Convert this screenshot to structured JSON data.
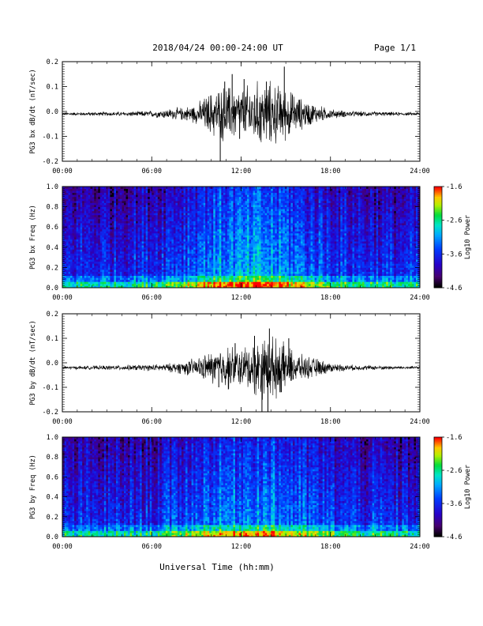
{
  "header": {
    "title": "2018/04/24  00:00-24:00 UT",
    "page": "Page 1/1"
  },
  "footer": {
    "xlabel": "Universal Time (hh:mm)"
  },
  "chart_data": [
    {
      "type": "line",
      "ylabel": "PG3 bx dB/dt (nT/sec)",
      "xlim": [
        0,
        24
      ],
      "ylim": [
        -0.2,
        0.2
      ],
      "x_ticks": [
        "00:00",
        "06:00",
        "12:00",
        "18:00",
        "24:00"
      ],
      "y_ticks": [
        "0.2",
        "0.1",
        "0.0",
        "-0.1",
        "-0.2"
      ],
      "baseline": -0.01,
      "envelope_hours": [
        0,
        1,
        2,
        3,
        4,
        5,
        6,
        7,
        8,
        9,
        10,
        11,
        12,
        13,
        14,
        15,
        16,
        17,
        18,
        19,
        20,
        21,
        22,
        23,
        24
      ],
      "envelope_amplitude": [
        0.005,
        0.005,
        0.006,
        0.006,
        0.007,
        0.008,
        0.01,
        0.015,
        0.02,
        0.03,
        0.07,
        0.09,
        0.08,
        0.1,
        0.1,
        0.08,
        0.05,
        0.03,
        0.015,
        0.01,
        0.008,
        0.007,
        0.006,
        0.005,
        0.005
      ],
      "spikes": [
        {
          "x": 10.6,
          "y": -0.21
        },
        {
          "x": 11.4,
          "y": 0.15
        },
        {
          "x": 10.9,
          "y": 0.12
        },
        {
          "x": 14.9,
          "y": 0.18
        },
        {
          "x": 13.7,
          "y": 0.12
        },
        {
          "x": 12.2,
          "y": 0.13
        },
        {
          "x": 15.2,
          "y": -0.09
        },
        {
          "x": 11.9,
          "y": -0.11
        }
      ]
    },
    {
      "type": "heatmap",
      "ylabel": "PG3 bx Freq (Hz)",
      "xlim": [
        0,
        24
      ],
      "ylim": [
        0,
        1.0
      ],
      "x_ticks": [
        "00:00",
        "06:00",
        "12:00",
        "18:00",
        "24:00"
      ],
      "y_ticks": [
        "1.0",
        "0.8",
        "0.6",
        "0.4",
        "0.2",
        "0.0"
      ],
      "colorbar_label": "Log10 Power",
      "colorbar_ticks": [
        "-1.6",
        "-2.6",
        "-3.6",
        "-4.6"
      ],
      "zlim": [
        -4.6,
        -1.6
      ],
      "activity_hours": [
        0,
        2,
        4,
        6,
        8,
        9,
        10,
        11,
        12,
        13,
        14,
        15,
        16,
        17,
        18,
        20,
        22,
        24
      ],
      "activity_level": [
        0.12,
        0.14,
        0.16,
        0.2,
        0.32,
        0.42,
        0.52,
        0.55,
        0.52,
        0.58,
        0.56,
        0.5,
        0.42,
        0.34,
        0.28,
        0.2,
        0.16,
        0.14
      ]
    },
    {
      "type": "line",
      "ylabel": "PG3 by dB/dt (nT/sec)",
      "xlim": [
        0,
        24
      ],
      "ylim": [
        -0.2,
        0.2
      ],
      "x_ticks": [
        "00:00",
        "06:00",
        "12:00",
        "18:00",
        "24:00"
      ],
      "y_ticks": [
        "0.2",
        "0.1",
        "0.0",
        "-0.1",
        "-0.2"
      ],
      "baseline": -0.02,
      "envelope_hours": [
        0,
        1,
        2,
        3,
        4,
        5,
        6,
        7,
        8,
        9,
        10,
        11,
        12,
        13,
        14,
        15,
        16,
        17,
        18,
        19,
        20,
        21,
        22,
        23,
        24
      ],
      "envelope_amplitude": [
        0.005,
        0.005,
        0.006,
        0.007,
        0.008,
        0.009,
        0.01,
        0.012,
        0.02,
        0.03,
        0.05,
        0.07,
        0.06,
        0.09,
        0.1,
        0.07,
        0.04,
        0.03,
        0.015,
        0.01,
        0.008,
        0.007,
        0.006,
        0.005,
        0.005
      ],
      "spikes": [
        {
          "x": 13.4,
          "y": -0.22
        },
        {
          "x": 13.8,
          "y": -0.22
        },
        {
          "x": 13.9,
          "y": 0.14
        },
        {
          "x": 12.9,
          "y": 0.11
        },
        {
          "x": 11.6,
          "y": 0.08
        },
        {
          "x": 10.5,
          "y": -0.1
        },
        {
          "x": 14.7,
          "y": -0.12
        },
        {
          "x": 15.2,
          "y": 0.1
        }
      ]
    },
    {
      "type": "heatmap",
      "ylabel": "PG3 by Freq (Hz)",
      "xlim": [
        0,
        24
      ],
      "ylim": [
        0,
        1.0
      ],
      "x_ticks": [
        "00:00",
        "06:00",
        "12:00",
        "18:00",
        "24:00"
      ],
      "y_ticks": [
        "1.0",
        "0.8",
        "0.6",
        "0.4",
        "0.2",
        "0.0"
      ],
      "colorbar_label": "Log10 Power",
      "colorbar_ticks": [
        "-1.6",
        "-2.6",
        "-3.6",
        "-4.6"
      ],
      "zlim": [
        -4.6,
        -1.6
      ],
      "activity_hours": [
        0,
        2,
        4,
        6,
        8,
        9,
        10,
        11,
        12,
        13,
        14,
        15,
        16,
        17,
        18,
        20,
        22,
        24
      ],
      "activity_level": [
        0.1,
        0.12,
        0.14,
        0.17,
        0.28,
        0.36,
        0.44,
        0.46,
        0.48,
        0.55,
        0.5,
        0.44,
        0.36,
        0.3,
        0.24,
        0.18,
        0.14,
        0.12
      ]
    }
  ]
}
